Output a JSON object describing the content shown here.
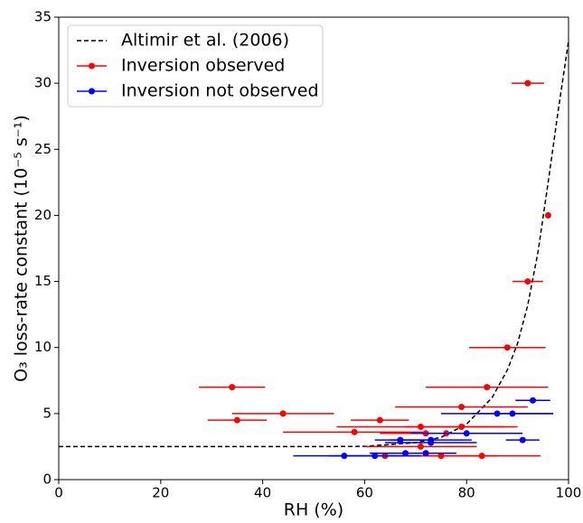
{
  "chart_data": {
    "type": "scatter",
    "xlabel": "RH (%)",
    "ylabel": "O₃ loss-rate constant (10⁻⁵ s⁻¹)",
    "xlim": [
      0,
      100
    ],
    "xticks": [
      0,
      20,
      40,
      60,
      80,
      100
    ],
    "ylim": [
      0,
      35
    ],
    "yticks": [
      0,
      5,
      10,
      15,
      20,
      25,
      30,
      35
    ],
    "legend": "upper left",
    "series": [
      {
        "name": "Altimir et al. (2006)",
        "type": "line",
        "style": "dashed",
        "color": "#000000",
        "x": [
          0,
          10,
          20,
          30,
          40,
          50,
          60,
          70,
          75,
          80,
          85,
          88,
          90,
          92,
          94,
          96,
          98,
          100
        ],
        "values": [
          2.5,
          2.5,
          2.5,
          2.5,
          2.5,
          2.5,
          2.52,
          2.8,
          3.2,
          4.2,
          6.2,
          8.3,
          10.3,
          13.2,
          17.2,
          22.5,
          28,
          33.2
        ]
      },
      {
        "name": "Inversion observed",
        "type": "errorbar",
        "color": "#ff0000",
        "x": [
          92,
          96,
          92,
          88,
          84,
          34,
          79,
          44,
          63,
          35,
          71,
          79,
          58,
          72,
          76,
          71,
          64,
          75,
          83
        ],
        "values": [
          30,
          20,
          15,
          10,
          7,
          7,
          5.5,
          5,
          4.5,
          4.5,
          4,
          4,
          3.6,
          3.5,
          3.5,
          2.5,
          1.8,
          1.8,
          1.8
        ],
        "xerr": [
          3.2,
          0.5,
          3,
          7.5,
          12,
          6.5,
          13,
          10,
          5.7,
          5.8,
          16.5,
          11,
          14,
          9,
          10,
          11,
          10,
          11,
          11.5
        ]
      },
      {
        "name": "Inversion not observed",
        "type": "errorbar",
        "color": "#0000ff",
        "x": [
          93,
          86,
          89,
          80,
          67,
          73,
          73,
          91,
          68,
          72,
          56,
          62
        ],
        "values": [
          6,
          5,
          5,
          3.5,
          3,
          3,
          2.8,
          3,
          2,
          2,
          1.8,
          1.8
        ],
        "xerr": [
          3.4,
          11,
          8,
          11,
          5,
          8,
          9,
          3.3,
          7,
          6,
          10,
          9
        ]
      }
    ]
  }
}
